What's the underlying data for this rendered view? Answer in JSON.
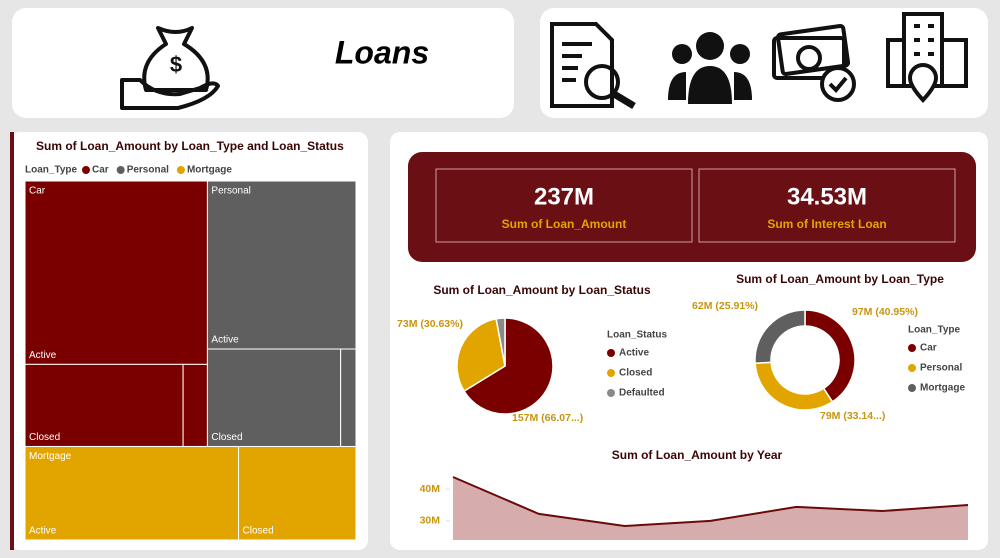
{
  "header": {
    "title": "Loans"
  },
  "kpis": [
    {
      "value": "237M",
      "label": "Sum of Loan_Amount"
    },
    {
      "value": "34.53M",
      "label": "Sum of Interest Loan"
    }
  ],
  "chart_data": [
    {
      "type": "treemap",
      "title": "Sum of Loan_Amount by Loan_Type and Loan_Status",
      "legend_title": "Loan_Type",
      "groups": [
        {
          "name": "Car",
          "color": "#7a0000",
          "children": [
            {
              "label": "Active",
              "value": 67
            },
            {
              "label": "Closed",
              "value": 26
            },
            {
              "label": null,
              "value": 4
            }
          ]
        },
        {
          "name": "Personal",
          "color": "#5f5f5f",
          "children": [
            {
              "label": "Active",
              "value": 50
            },
            {
              "label": "Closed",
              "value": 26
            },
            {
              "label": null,
              "value": 3
            }
          ]
        },
        {
          "name": "Mortgage",
          "color": "#e2a500",
          "children": [
            {
              "label": "Active",
              "value": 40
            },
            {
              "label": "Closed",
              "value": 22
            }
          ]
        }
      ]
    },
    {
      "type": "pie",
      "title": "Sum of Loan_Amount by Loan_Status",
      "legend_title": "Loan_Status",
      "categories": [
        "Active",
        "Closed",
        "Defaulted"
      ],
      "values": [
        157,
        73,
        7
      ],
      "value_labels": [
        "157M (66.07...)",
        "73M (30.63%)",
        null
      ],
      "colors": [
        "#7a0000",
        "#e2a500",
        "#8a8a8a"
      ]
    },
    {
      "type": "donut",
      "title": "Sum of Loan_Amount by Loan_Type",
      "legend_title": "Loan_Type",
      "categories": [
        "Car",
        "Personal",
        "Mortgage"
      ],
      "values": [
        97,
        79,
        62
      ],
      "value_labels": [
        "97M (40.95%)",
        "79M (33.14...)",
        "62M (25.91%)"
      ],
      "colors": [
        "#7a0000",
        "#e2a500",
        "#5f5f5f"
      ]
    },
    {
      "type": "area",
      "title": "Sum of Loan_Amount by Year",
      "categories": [
        null,
        null,
        null,
        null,
        null,
        null,
        null
      ],
      "values": [
        43.8,
        32.2,
        28.4,
        30,
        34.4,
        33.1,
        35
      ],
      "color": "#6b0a0a",
      "fill": "#c89090",
      "ylim": [
        24,
        46
      ],
      "yticks": [
        {
          "value": 30,
          "label": "30M"
        },
        {
          "value": 40,
          "label": "40M"
        }
      ]
    }
  ]
}
